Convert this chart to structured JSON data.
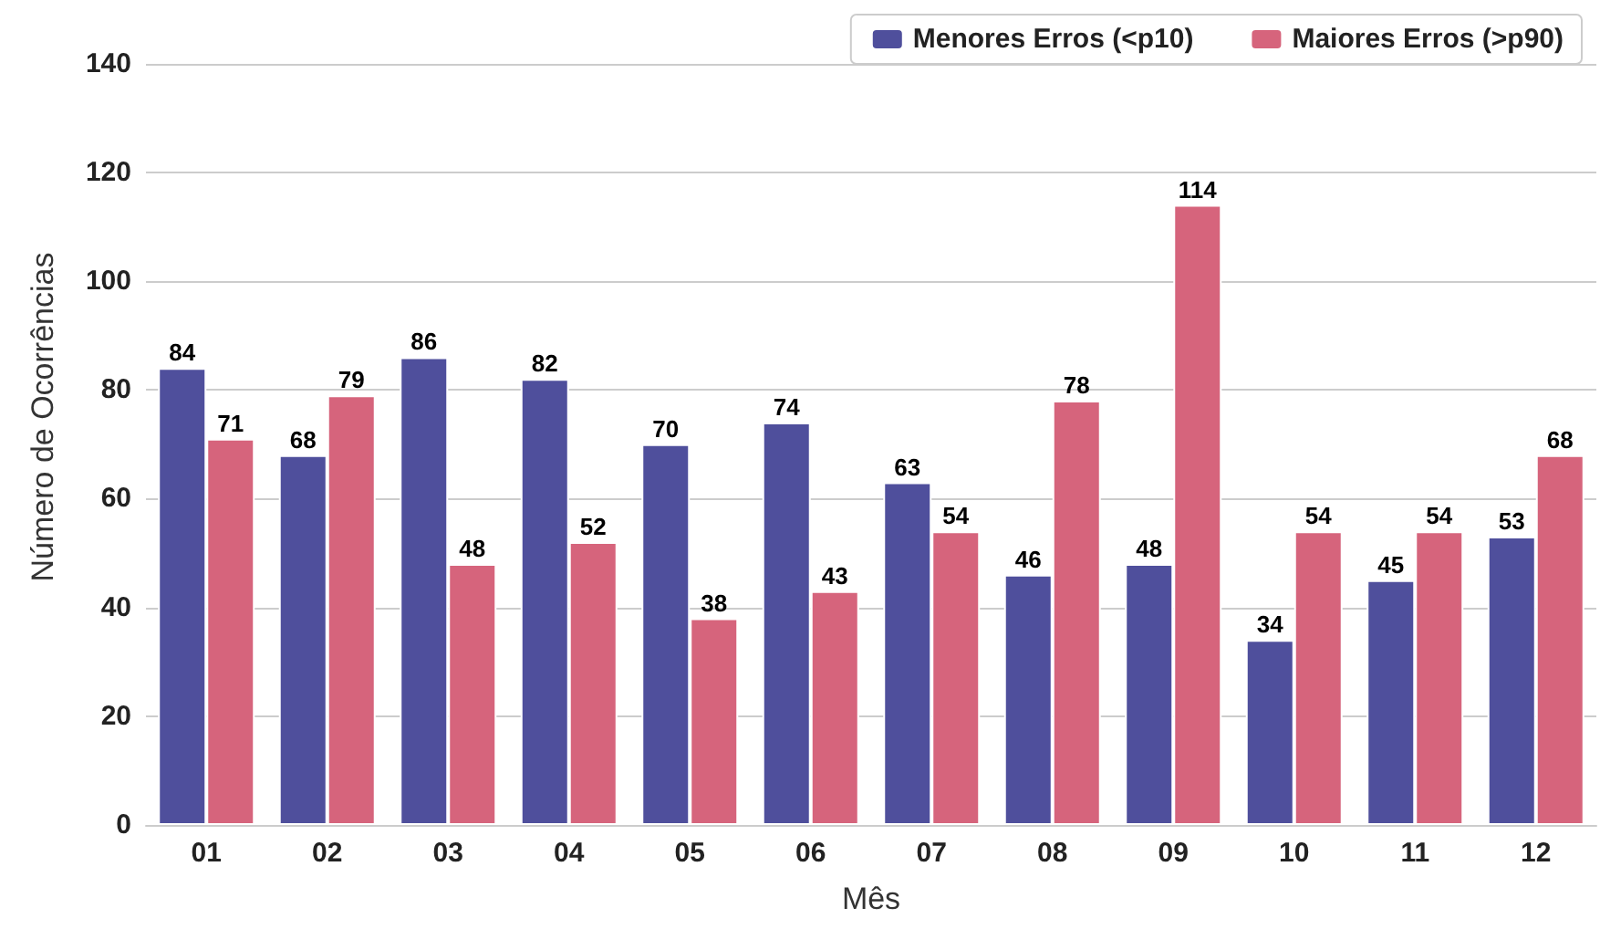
{
  "chart_data": {
    "type": "bar",
    "xlabel": "Mês",
    "ylabel": "Número de Ocorrências",
    "categories": [
      "01",
      "02",
      "03",
      "04",
      "05",
      "06",
      "07",
      "08",
      "09",
      "10",
      "11",
      "12"
    ],
    "series": [
      {
        "name": "Menores Erros (<p10)",
        "color": "#4f4f9c",
        "values": [
          84,
          68,
          86,
          82,
          70,
          74,
          63,
          46,
          48,
          34,
          45,
          53
        ]
      },
      {
        "name": "Maiores Erros (>p90)",
        "color": "#d6647c",
        "values": [
          71,
          79,
          48,
          52,
          38,
          43,
          54,
          78,
          114,
          54,
          54,
          68
        ]
      }
    ],
    "ylim": [
      0,
      150
    ],
    "yticks": [
      0,
      20,
      40,
      60,
      80,
      100,
      120,
      140
    ],
    "grid": "y",
    "legend": "top right",
    "data_labels": true
  }
}
